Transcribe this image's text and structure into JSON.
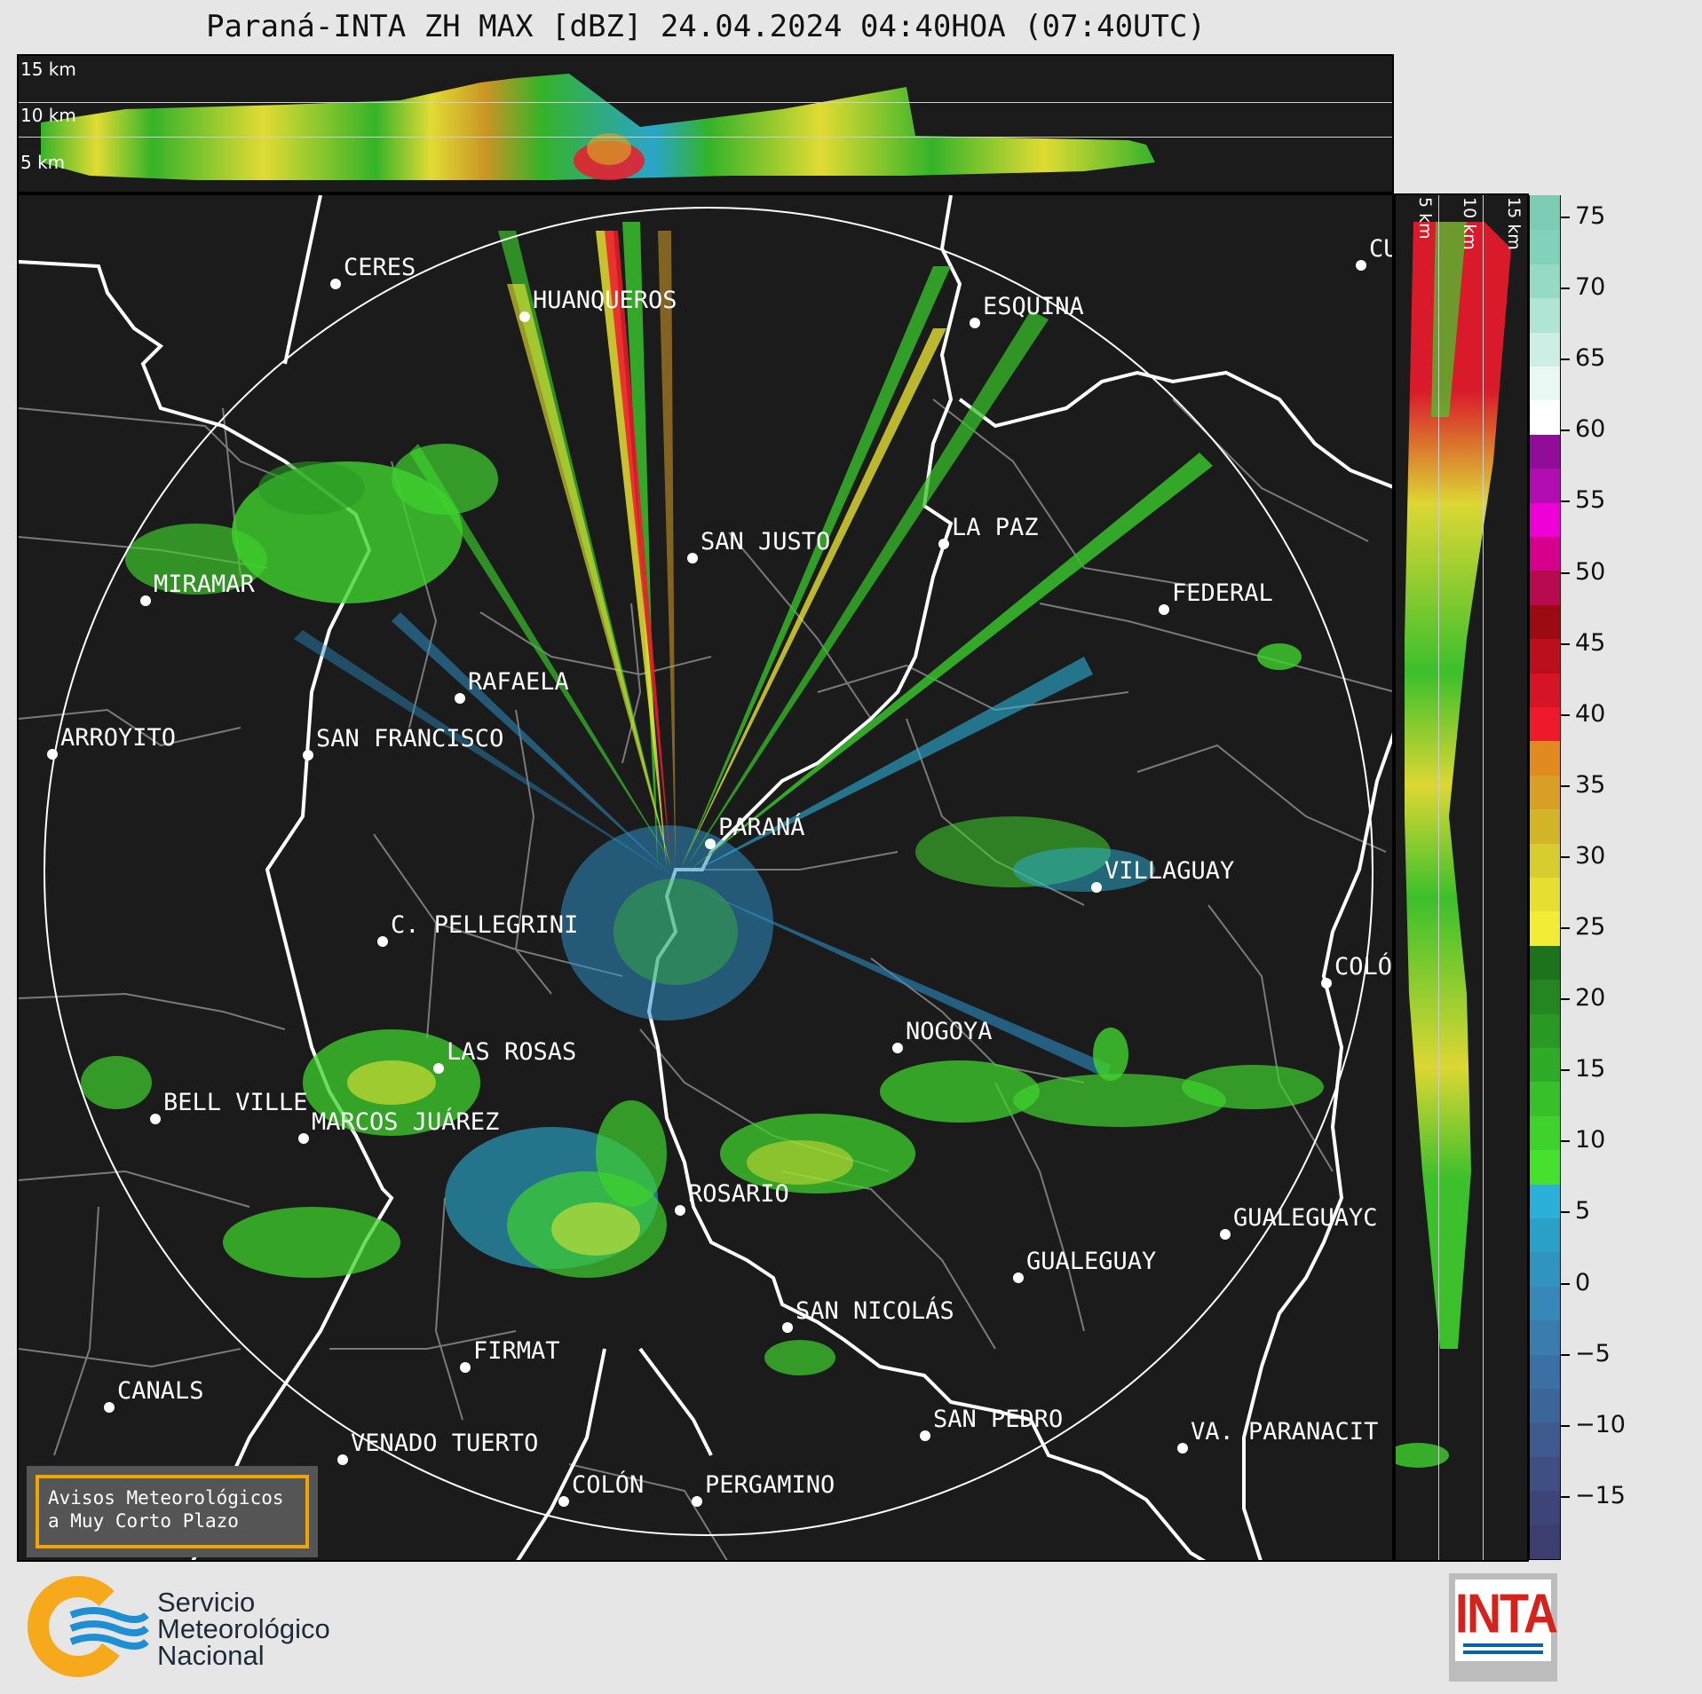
{
  "title": "Paraná-INTA ZH MAX [dBZ] 24.04.2024 04:40HOA (07:40UTC)",
  "top_panel": {
    "height_labels": [
      "15 km",
      "10 km",
      "5 km"
    ]
  },
  "side_panel": {
    "height_labels": [
      "5 km",
      "10 km",
      "15 km"
    ]
  },
  "colorbar": {
    "ticks": [
      "75",
      "70",
      "65",
      "60",
      "55",
      "50",
      "45",
      "40",
      "35",
      "30",
      "25",
      "20",
      "15",
      "10",
      "5",
      "0",
      "−5",
      "−10",
      "−15"
    ],
    "color_steps": [
      "#3b3e6f",
      "#3d4578",
      "#3f4f83",
      "#3f5a8e",
      "#3c6599",
      "#3a70a3",
      "#3a7cae",
      "#3788b8",
      "#3193c0",
      "#2aa0c9",
      "#2bb1d8",
      "#46e02f",
      "#3fd22d",
      "#37c02a",
      "#2fab27",
      "#299924",
      "#238620",
      "#1d731b",
      "#f2ec36",
      "#e6df32",
      "#d8cd2e",
      "#d4b52a",
      "#d89f26",
      "#e08a20",
      "#ee1a2c",
      "#d51425",
      "#bb0f1e",
      "#9c0a14",
      "#b80a4f",
      "#d6008c",
      "#ee00d6",
      "#b20db0",
      "#900d99",
      "#ffffff",
      "#eaf8f4",
      "#cdeee4",
      "#b0e4d4",
      "#96dac6",
      "#82d2bb",
      "#7ccbb5"
    ]
  },
  "cities": [
    {
      "name": "CERES"
    },
    {
      "name": "HUANQUEROS"
    },
    {
      "name": "ESQUINA"
    },
    {
      "name": "CU"
    },
    {
      "name": "MIRAMAR"
    },
    {
      "name": "SAN JUSTO"
    },
    {
      "name": "LA PAZ"
    },
    {
      "name": "FEDERAL"
    },
    {
      "name": "RAFAELA"
    },
    {
      "name": "ARROYITO"
    },
    {
      "name": "SAN FRANCISCO"
    },
    {
      "name": "PARANÁ"
    },
    {
      "name": "VILLAGUAY"
    },
    {
      "name": "C. PELLEGRINI"
    },
    {
      "name": "COLÓ"
    },
    {
      "name": "NOGOYA"
    },
    {
      "name": "LAS ROSAS"
    },
    {
      "name": "BELL VILLE"
    },
    {
      "name": "MARCOS JUÁREZ"
    },
    {
      "name": "ROSARIO"
    },
    {
      "name": "GUALEGUAYC"
    },
    {
      "name": "GUALEGUAY"
    },
    {
      "name": "SAN NICOLÁS"
    },
    {
      "name": "FIRMAT"
    },
    {
      "name": "CANALS"
    },
    {
      "name": "SAN PEDRO"
    },
    {
      "name": "VENADO TUERTO"
    },
    {
      "name": "VA. PARANACIT"
    },
    {
      "name": "COLÓN"
    },
    {
      "name": "PERGAMINO"
    }
  ],
  "warning_box": {
    "line1": "Avisos Meteorológicos",
    "line2": "a Muy Corto Plazo"
  },
  "footer": {
    "smn_line1": "Servicio",
    "smn_line2": "Meteorológico",
    "smn_line3": "Nacional",
    "inta_logo_text": "INTA",
    "smn_colors": {
      "orange": "#f6a91b",
      "blue": "#1d8fd2"
    },
    "inta_colors": {
      "red": "#d3231c",
      "blue": "#0a63a8"
    }
  }
}
